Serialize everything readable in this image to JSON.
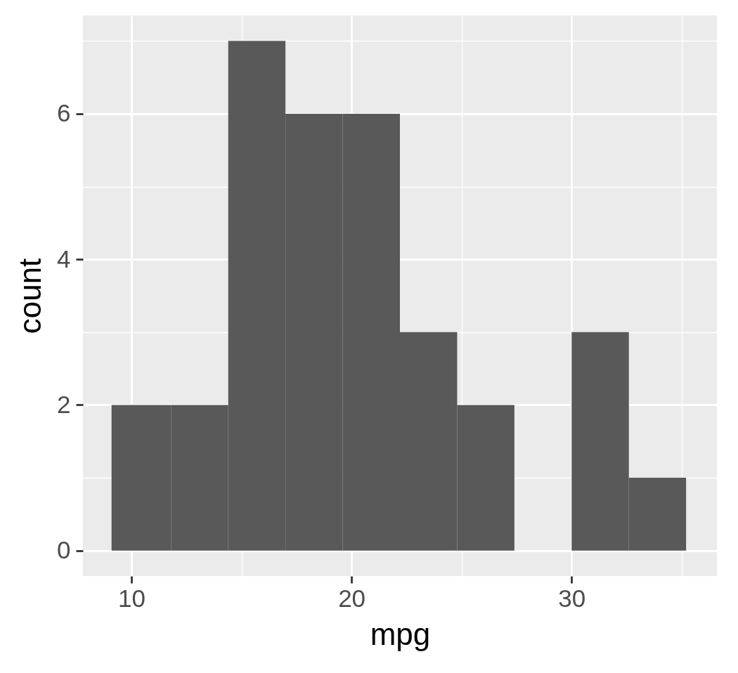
{
  "chart_data": {
    "type": "histogram",
    "xlabel": "mpg",
    "ylabel": "count",
    "bins": [
      9.1,
      11.8,
      14.4,
      17.0,
      19.6,
      22.2,
      24.8,
      27.4,
      30.0,
      32.6,
      35.2
    ],
    "values": [
      2,
      2,
      7,
      6,
      6,
      3,
      2,
      0,
      3,
      1
    ],
    "color": "#595959",
    "xlim": [
      7.8,
      36.6
    ],
    "ylim": [
      -0.35,
      7.35
    ],
    "xticks": [
      10,
      20,
      30
    ],
    "yticks": [
      0,
      2,
      4,
      6
    ],
    "grid": true
  }
}
